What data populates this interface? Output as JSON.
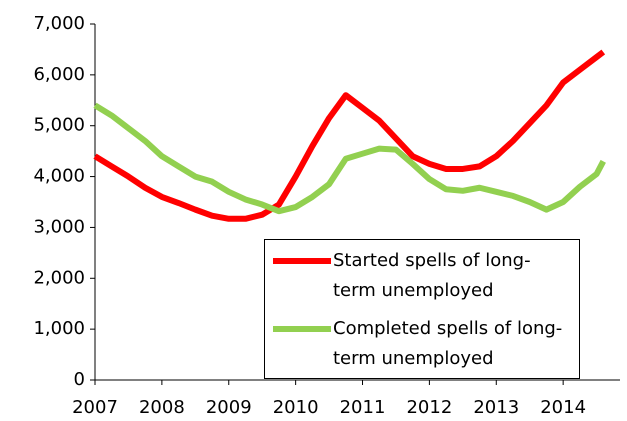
{
  "chart_data": {
    "type": "line",
    "xlim": [
      2007,
      2014.85
    ],
    "xticks": [
      2007,
      2008,
      2009,
      2010,
      2011,
      2012,
      2013,
      2014
    ],
    "ylim": [
      0,
      7000
    ],
    "yticks": [
      {
        "value": 0,
        "label": "0"
      },
      {
        "value": 1000,
        "label": "1,000"
      },
      {
        "value": 2000,
        "label": "2,000"
      },
      {
        "value": 3000,
        "label": "3,000"
      },
      {
        "value": 4000,
        "label": "4,000"
      },
      {
        "value": 5000,
        "label": "5,000"
      },
      {
        "value": 6000,
        "label": "6,000"
      },
      {
        "value": 7000,
        "label": "7,000"
      }
    ],
    "x": [
      2007,
      2007.25,
      2007.5,
      2007.75,
      2008,
      2008.25,
      2008.5,
      2008.75,
      2009,
      2009.25,
      2009.5,
      2009.75,
      2010,
      2010.25,
      2010.5,
      2010.75,
      2011,
      2011.25,
      2011.5,
      2011.75,
      2012,
      2012.25,
      2012.5,
      2012.75,
      2013,
      2013.25,
      2013.5,
      2013.75,
      2014,
      2014.25,
      2014.5,
      2014.6
    ],
    "series": [
      {
        "name": "Started spells of long-term unemployed",
        "color": "#ff0000",
        "values": [
          4400,
          4200,
          4000,
          3780,
          3600,
          3480,
          3350,
          3230,
          3170,
          3170,
          3250,
          3450,
          4000,
          4600,
          5150,
          5600,
          5350,
          5100,
          4750,
          4400,
          4250,
          4150,
          4150,
          4200,
          4400,
          4700,
          5050,
          5400,
          5850,
          6100,
          6350,
          6450
        ]
      },
      {
        "name": "Completed spells of long-term unemployed",
        "color": "#92d050",
        "values": [
          5400,
          5200,
          4950,
          4700,
          4400,
          4200,
          4000,
          3900,
          3700,
          3550,
          3450,
          3320,
          3400,
          3600,
          3850,
          4350,
          4450,
          4550,
          4530,
          4250,
          3950,
          3750,
          3720,
          3780,
          3700,
          3620,
          3500,
          3350,
          3500,
          3800,
          4050,
          4300
        ]
      }
    ],
    "legend": "lower right"
  }
}
